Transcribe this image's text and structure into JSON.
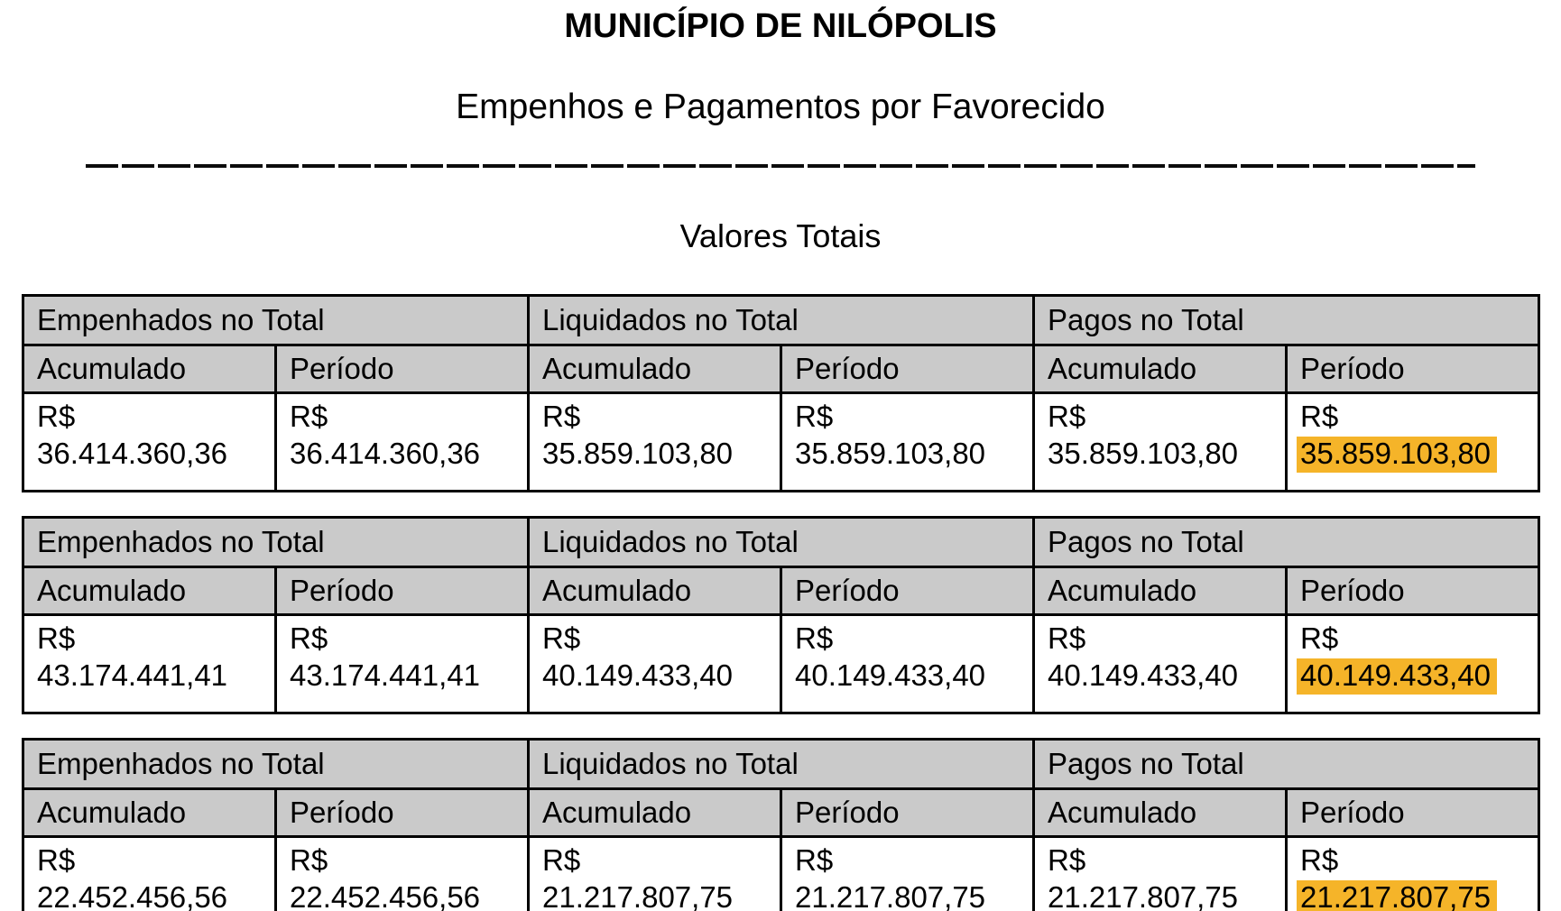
{
  "header": {
    "title": "MUNICÍPIO DE NILÓPOLIS",
    "subtitle": "Empenhos e Pagamentos por Favorecido",
    "section_title": "Valores Totais"
  },
  "currency": "R$",
  "colors": {
    "table_header_bg": "#cacaca",
    "highlight_bg": "#f5b429",
    "border": "#000000"
  },
  "tables": [
    {
      "group_headers": [
        "Empenhados no Total",
        "Liquidados no Total",
        "Pagos no Total"
      ],
      "column_headers": [
        "Acumulado",
        "Período",
        "Acumulado",
        "Período",
        "Acumulado",
        "Período"
      ],
      "values": [
        "36.414.360,36",
        "36.414.360,36",
        "35.859.103,80",
        "35.859.103,80",
        "35.859.103,80",
        "35.859.103,80"
      ],
      "highlighted_value_index": 5
    },
    {
      "group_headers": [
        "Empenhados no Total",
        "Liquidados no Total",
        "Pagos no Total"
      ],
      "column_headers": [
        "Acumulado",
        "Período",
        "Acumulado",
        "Período",
        "Acumulado",
        "Período"
      ],
      "values": [
        "43.174.441,41",
        "43.174.441,41",
        "40.149.433,40",
        "40.149.433,40",
        "40.149.433,40",
        "40.149.433,40"
      ],
      "highlighted_value_index": 5
    },
    {
      "group_headers": [
        "Empenhados no Total",
        "Liquidados no Total",
        "Pagos no Total"
      ],
      "column_headers": [
        "Acumulado",
        "Período",
        "Acumulado",
        "Período",
        "Acumulado",
        "Período"
      ],
      "values": [
        "22.452.456,56",
        "22.452.456,56",
        "21.217.807,75",
        "21.217.807,75",
        "21.217.807,75",
        "21.217.807,75"
      ],
      "highlighted_value_index": 5
    }
  ]
}
